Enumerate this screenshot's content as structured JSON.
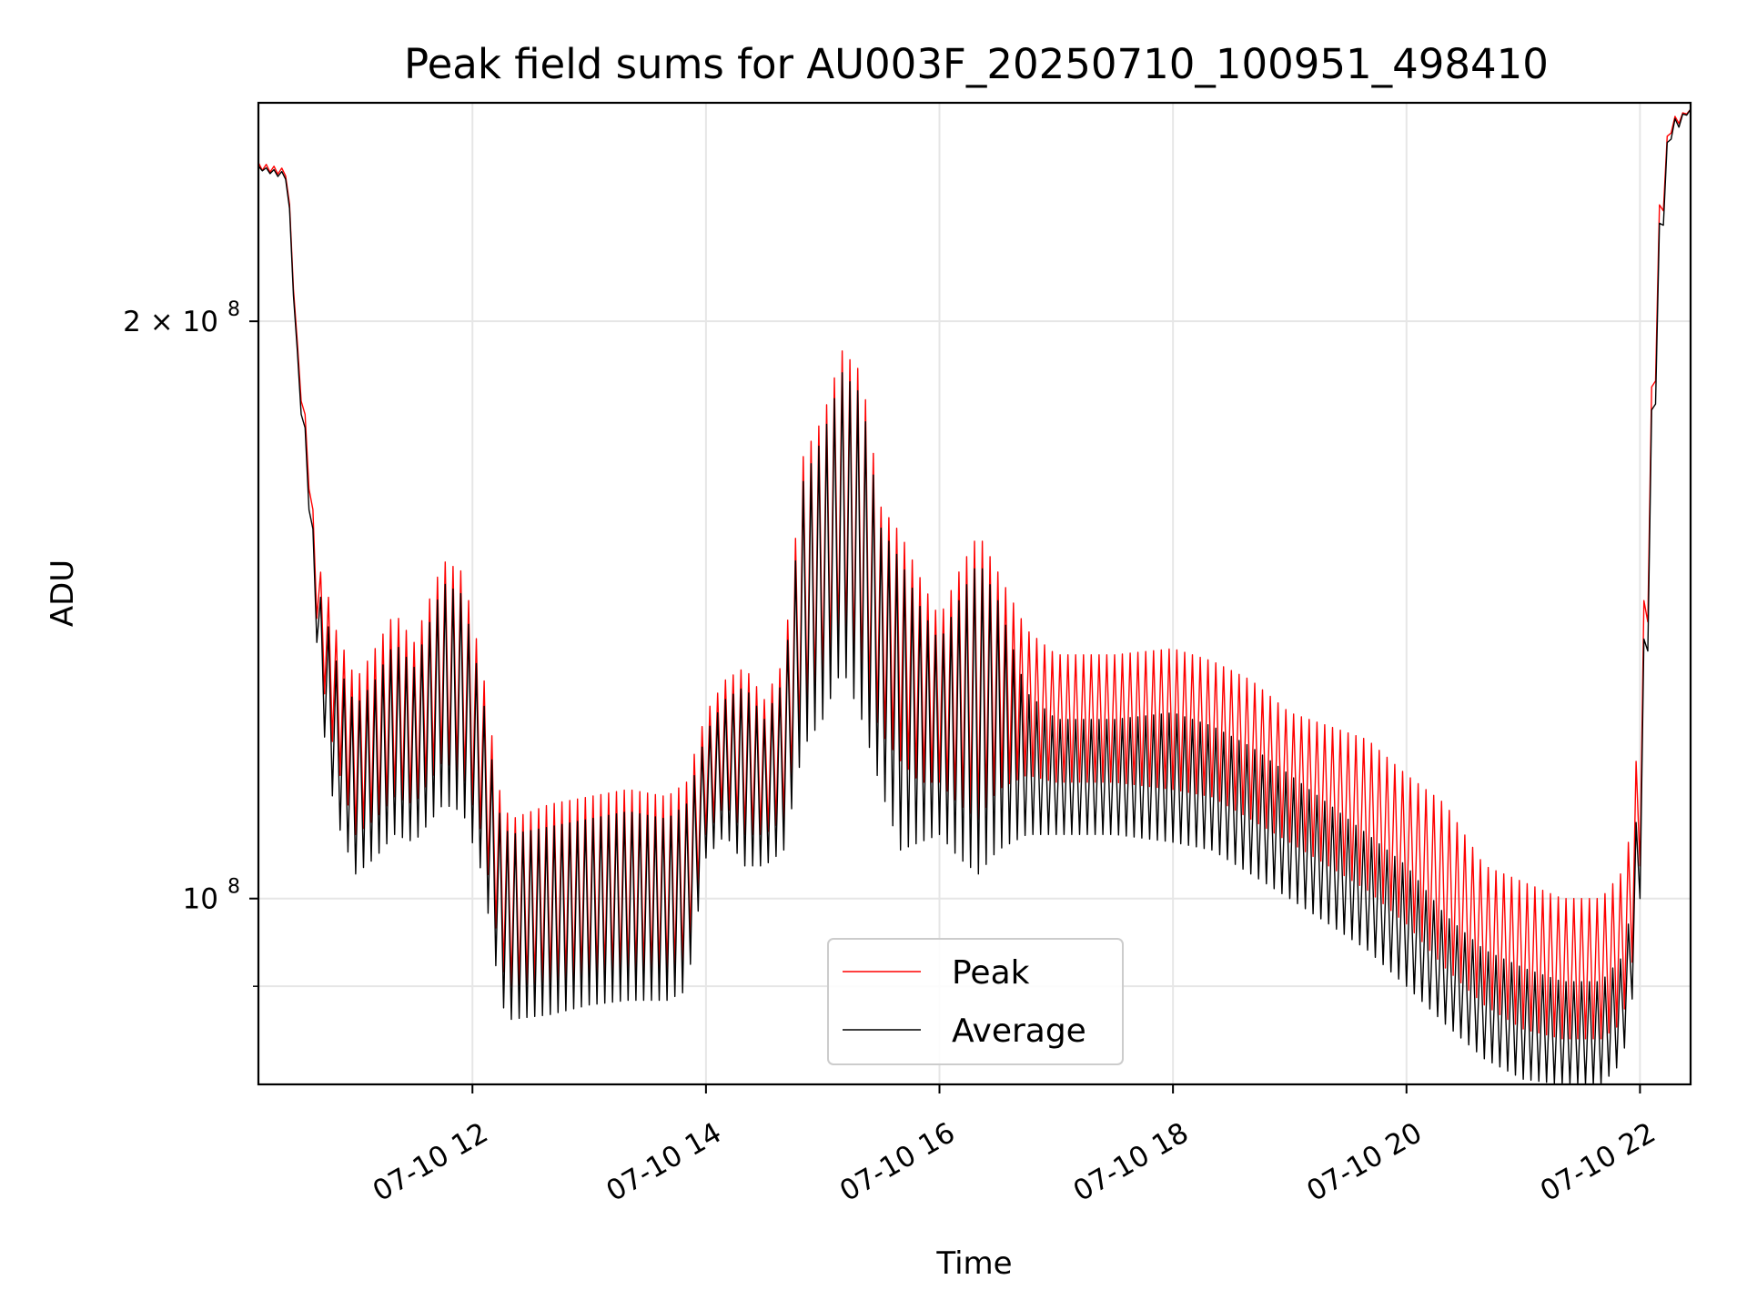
{
  "chart_data": {
    "type": "line",
    "title": "Peak field sums for AU003F_20250710_100951_498410",
    "xlabel": "Time",
    "ylabel": "ADU",
    "xlim": [
      "2025-07-10T10:10",
      "2025-07-10T22:26"
    ],
    "ylim": [
      80000000,
      260000000
    ],
    "yscale": "log",
    "xticks": [
      {
        "value": "2025-07-10T12:00",
        "label": "07-10 12"
      },
      {
        "value": "2025-07-10T14:00",
        "label": "07-10 14"
      },
      {
        "value": "2025-07-10T16:00",
        "label": "07-10 16"
      },
      {
        "value": "2025-07-10T18:00",
        "label": "07-10 18"
      },
      {
        "value": "2025-07-10T20:00",
        "label": "07-10 20"
      },
      {
        "value": "2025-07-10T22:00",
        "label": "07-10 22"
      }
    ],
    "yticks": [
      {
        "value": 100000000,
        "label_base": "10",
        "label_exp": "8"
      },
      {
        "value": 200000000,
        "label_base": "2 × 10",
        "label_exp": "8"
      }
    ],
    "grid": true,
    "legend_position": "bottom-center",
    "series": [
      {
        "name": "Peak",
        "color": "#ff0000",
        "envelope": {
          "x": [
            "2025-07-10T10:10",
            "2025-07-10T10:25",
            "2025-07-10T10:30",
            "2025-07-10T10:35",
            "2025-07-10T10:40",
            "2025-07-10T10:45",
            "2025-07-10T10:50",
            "2025-07-10T11:00",
            "2025-07-10T11:10",
            "2025-07-10T11:20",
            "2025-07-10T11:30",
            "2025-07-10T11:45",
            "2025-07-10T11:55",
            "2025-07-10T12:05",
            "2025-07-10T12:15",
            "2025-07-10T12:20",
            "2025-07-10T12:40",
            "2025-07-10T13:00",
            "2025-07-10T13:20",
            "2025-07-10T13:40",
            "2025-07-10T13:50",
            "2025-07-10T14:00",
            "2025-07-10T14:10",
            "2025-07-10T14:20",
            "2025-07-10T14:30",
            "2025-07-10T14:40",
            "2025-07-10T14:50",
            "2025-07-10T15:00",
            "2025-07-10T15:10",
            "2025-07-10T15:20",
            "2025-07-10T15:30",
            "2025-07-10T15:40",
            "2025-07-10T15:50",
            "2025-07-10T16:00",
            "2025-07-10T16:10",
            "2025-07-10T16:20",
            "2025-07-10T16:30",
            "2025-07-10T16:45",
            "2025-07-10T17:00",
            "2025-07-10T17:30",
            "2025-07-10T18:00",
            "2025-07-10T18:20",
            "2025-07-10T18:40",
            "2025-07-10T19:00",
            "2025-07-10T19:20",
            "2025-07-10T19:40",
            "2025-07-10T20:00",
            "2025-07-10T20:20",
            "2025-07-10T20:40",
            "2025-07-10T21:00",
            "2025-07-10T21:20",
            "2025-07-10T21:30",
            "2025-07-10T21:40",
            "2025-07-10T21:50",
            "2025-07-10T21:55",
            "2025-07-10T22:00",
            "2025-07-10T22:05",
            "2025-07-10T22:10",
            "2025-07-10T22:15",
            "2025-07-10T22:26"
          ],
          "high": [
            242000000,
            240000000,
            195000000,
            175000000,
            150000000,
            145000000,
            138000000,
            130000000,
            135000000,
            141000000,
            136000000,
            150000000,
            148000000,
            132000000,
            112000000,
            110000000,
            112000000,
            113000000,
            114000000,
            113000000,
            115000000,
            125000000,
            130000000,
            132000000,
            127000000,
            133000000,
            170000000,
            178000000,
            193000000,
            188000000,
            160000000,
            155000000,
            147000000,
            140000000,
            148000000,
            155000000,
            148000000,
            138000000,
            134000000,
            134000000,
            135000000,
            133000000,
            130000000,
            125000000,
            123000000,
            121000000,
            116000000,
            112000000,
            104000000,
            102000000,
            100000000,
            100000000,
            100000000,
            103000000,
            108000000,
            125000000,
            175000000,
            230000000,
            255000000,
            258000000
          ],
          "low": [
            240000000,
            238000000,
            190000000,
            170000000,
            140000000,
            125000000,
            118000000,
            108000000,
            110000000,
            113000000,
            112000000,
            118000000,
            116000000,
            108000000,
            92000000,
            90000000,
            90500000,
            91000000,
            91500000,
            91500000,
            92500000,
            108000000,
            112000000,
            108000000,
            108000000,
            110000000,
            125000000,
            130000000,
            138000000,
            130000000,
            122000000,
            118000000,
            115000000,
            115000000,
            112000000,
            110000000,
            114000000,
            116000000,
            115000000,
            115000000,
            114000000,
            113000000,
            110000000,
            107000000,
            104000000,
            101000000,
            97000000,
            92000000,
            88000000,
            85500000,
            84500000,
            84500000,
            84500000,
            86000000,
            90000000,
            104000000,
            150000000,
            215000000,
            250000000,
            258000000
          ]
        }
      },
      {
        "name": "Average",
        "color": "#000000",
        "envelope": {
          "x": [
            "2025-07-10T10:10",
            "2025-07-10T10:25",
            "2025-07-10T10:30",
            "2025-07-10T10:35",
            "2025-07-10T10:40",
            "2025-07-10T10:45",
            "2025-07-10T10:50",
            "2025-07-10T11:00",
            "2025-07-10T11:10",
            "2025-07-10T11:20",
            "2025-07-10T11:30",
            "2025-07-10T11:45",
            "2025-07-10T11:55",
            "2025-07-10T12:05",
            "2025-07-10T12:15",
            "2025-07-10T12:20",
            "2025-07-10T12:40",
            "2025-07-10T13:00",
            "2025-07-10T13:20",
            "2025-07-10T13:40",
            "2025-07-10T13:50",
            "2025-07-10T14:00",
            "2025-07-10T14:10",
            "2025-07-10T14:20",
            "2025-07-10T14:30",
            "2025-07-10T14:40",
            "2025-07-10T14:50",
            "2025-07-10T15:00",
            "2025-07-10T15:10",
            "2025-07-10T15:20",
            "2025-07-10T15:30",
            "2025-07-10T15:40",
            "2025-07-10T15:50",
            "2025-07-10T16:00",
            "2025-07-10T16:10",
            "2025-07-10T16:20",
            "2025-07-10T16:30",
            "2025-07-10T16:45",
            "2025-07-10T17:00",
            "2025-07-10T17:30",
            "2025-07-10T18:00",
            "2025-07-10T18:20",
            "2025-07-10T18:40",
            "2025-07-10T19:00",
            "2025-07-10T19:20",
            "2025-07-10T19:40",
            "2025-07-10T20:00",
            "2025-07-10T20:20",
            "2025-07-10T20:40",
            "2025-07-10T21:00",
            "2025-07-10T21:20",
            "2025-07-10T21:30",
            "2025-07-10T21:40",
            "2025-07-10T21:50",
            "2025-07-10T21:55",
            "2025-07-10T22:00",
            "2025-07-10T22:05",
            "2025-07-10T22:10",
            "2025-07-10T22:15",
            "2025-07-10T22:26"
          ],
          "high": [
            241000000,
            239000000,
            193000000,
            172000000,
            146000000,
            140000000,
            133000000,
            126000000,
            130000000,
            136000000,
            132000000,
            146000000,
            144000000,
            128000000,
            109000000,
            108000000,
            109000000,
            110000000,
            111000000,
            110000000,
            112000000,
            122000000,
            127000000,
            129000000,
            124000000,
            130000000,
            165000000,
            174000000,
            188000000,
            183000000,
            156000000,
            150000000,
            142000000,
            136000000,
            143000000,
            150000000,
            143000000,
            128000000,
            124000000,
            124000000,
            125000000,
            123000000,
            120000000,
            116000000,
            112000000,
            108000000,
            104000000,
            98000000,
            94000000,
            92000000,
            90500000,
            90500000,
            90500000,
            93000000,
            98000000,
            118000000,
            170000000,
            225000000,
            254000000,
            258000000
          ],
          "low": [
            240000000,
            237000000,
            188000000,
            166000000,
            136000000,
            118000000,
            110000000,
            103000000,
            105000000,
            108000000,
            107000000,
            112000000,
            111000000,
            103000000,
            88000000,
            86500000,
            87000000,
            88000000,
            88500000,
            88500000,
            89500000,
            105000000,
            108000000,
            104000000,
            104000000,
            106000000,
            120000000,
            124000000,
            132000000,
            124000000,
            114000000,
            106000000,
            107000000,
            108000000,
            105000000,
            103000000,
            106000000,
            108000000,
            108000000,
            108000000,
            107000000,
            106000000,
            103000000,
            100000000,
            97000000,
            94000000,
            90000000,
            86000000,
            82500000,
            80500000,
            80000000,
            80000000,
            80000000,
            82000000,
            86000000,
            100000000,
            145000000,
            210000000,
            248000000,
            258000000
          ]
        }
      }
    ]
  }
}
